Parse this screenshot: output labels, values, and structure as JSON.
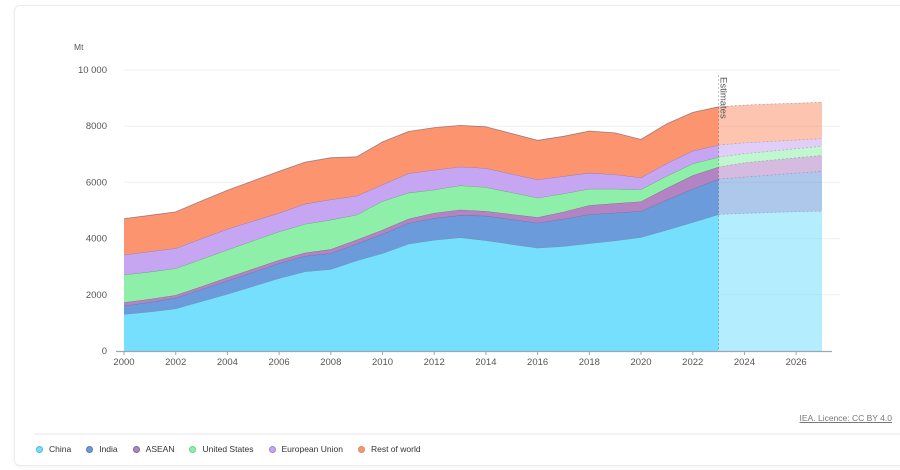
{
  "chart_data": {
    "type": "area",
    "stacked": true,
    "unit_label": "Mt",
    "ylim": [
      0,
      10000
    ],
    "yticks": [
      0,
      2000,
      4000,
      6000,
      8000,
      10000
    ],
    "ytick_labels": [
      "0",
      "2000",
      "4000",
      "6000",
      "8000",
      "10 000"
    ],
    "xlim": [
      2000,
      2027
    ],
    "xticks": [
      2000,
      2002,
      2004,
      2006,
      2008,
      2010,
      2012,
      2014,
      2016,
      2018,
      2020,
      2022,
      2024,
      2026
    ],
    "grid": "horizontal",
    "estimates_label": "Estimates",
    "estimates_from": 2023,
    "x": [
      2000,
      2001,
      2002,
      2003,
      2004,
      2005,
      2006,
      2007,
      2008,
      2009,
      2010,
      2011,
      2012,
      2013,
      2014,
      2015,
      2016,
      2017,
      2018,
      2019,
      2020,
      2021,
      2022,
      2023,
      2024,
      2025,
      2026,
      2027
    ],
    "series": [
      {
        "name": "China",
        "color": "#75dffd",
        "values": [
          1310,
          1400,
          1510,
          1770,
          2030,
          2310,
          2590,
          2830,
          2910,
          3220,
          3480,
          3810,
          3950,
          4040,
          3940,
          3800,
          3670,
          3730,
          3830,
          3930,
          4050,
          4310,
          4580,
          4860,
          4900,
          4930,
          4960,
          4980
        ]
      },
      {
        "name": "India",
        "color": "#6b9bdb",
        "values": [
          300,
          340,
          380,
          430,
          470,
          500,
          530,
          550,
          570,
          600,
          680,
          740,
          780,
          790,
          870,
          890,
          890,
          970,
          1030,
          990,
          930,
          1070,
          1190,
          1260,
          1290,
          1330,
          1370,
          1410
        ]
      },
      {
        "name": "ASEAN",
        "color": "#b383c4",
        "values": [
          120,
          110,
          100,
          100,
          120,
          120,
          120,
          120,
          140,
          140,
          150,
          150,
          180,
          200,
          170,
          180,
          200,
          250,
          330,
          340,
          340,
          420,
          480,
          430,
          510,
          530,
          550,
          570
        ]
      },
      {
        "name": "United States",
        "color": "#8ef0a8",
        "values": [
          980,
          970,
          950,
          970,
          980,
          1000,
          1010,
          1020,
          1050,
          890,
          1020,
          930,
          830,
          860,
          850,
          770,
          690,
          650,
          580,
          510,
          430,
          430,
          420,
          350,
          320,
          320,
          320,
          330
        ]
      },
      {
        "name": "European Union",
        "color": "#c6a6f3",
        "values": [
          710,
          720,
          720,
          730,
          740,
          700,
          660,
          720,
          720,
          670,
          590,
          690,
          700,
          670,
          680,
          660,
          650,
          620,
          570,
          510,
          420,
          450,
          450,
          430,
          390,
          350,
          310,
          270
        ]
      },
      {
        "name": "Rest of world",
        "color": "#fc9470",
        "values": [
          1290,
          1290,
          1290,
          1340,
          1380,
          1430,
          1490,
          1480,
          1490,
          1390,
          1520,
          1490,
          1510,
          1470,
          1470,
          1440,
          1400,
          1420,
          1490,
          1480,
          1360,
          1410,
          1370,
          1360,
          1340,
          1330,
          1310,
          1290
        ]
      }
    ]
  },
  "legend": [
    {
      "label": "China",
      "color": "#4fb8de"
    },
    {
      "label": "India",
      "color": "#5b7bb0"
    },
    {
      "label": "ASEAN",
      "color": "#7a6a9e"
    },
    {
      "label": "United States",
      "color": "#6fd18a"
    },
    {
      "label": "European Union",
      "color": "#9d8ac2"
    },
    {
      "label": "Rest of world",
      "color": "#d98a6e"
    }
  ],
  "source": "IEA. Licence: CC BY 4.0"
}
